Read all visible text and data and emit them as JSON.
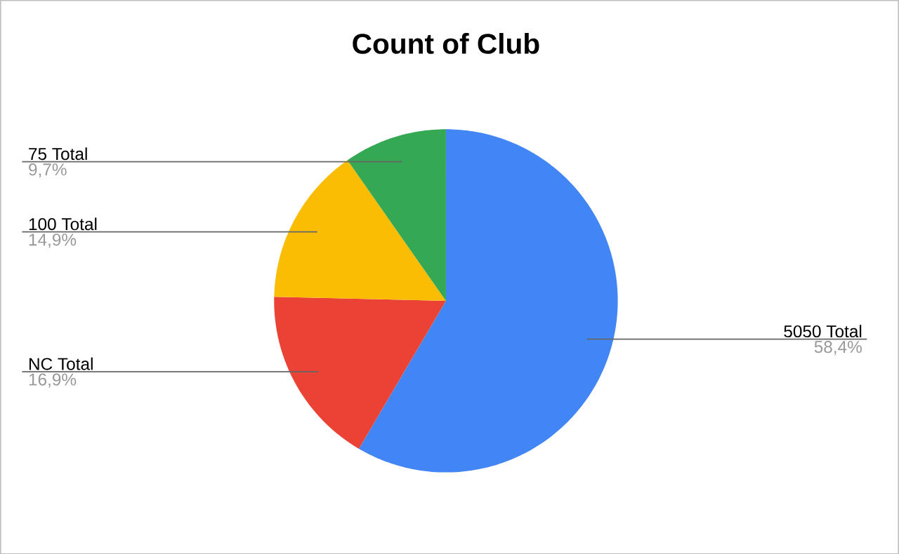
{
  "chart_data": {
    "type": "pie",
    "title": "Count of Club",
    "categories": [
      "5050 Total",
      "NC Total",
      "100 Total",
      "75 Total"
    ],
    "values": [
      58.4,
      16.9,
      14.9,
      9.7
    ],
    "value_labels": [
      "58,4%",
      "16,9%",
      "14,9%",
      "9,7%"
    ],
    "colors": [
      "#4285f4",
      "#ea4335",
      "#fbbc04",
      "#34a853"
    ]
  }
}
